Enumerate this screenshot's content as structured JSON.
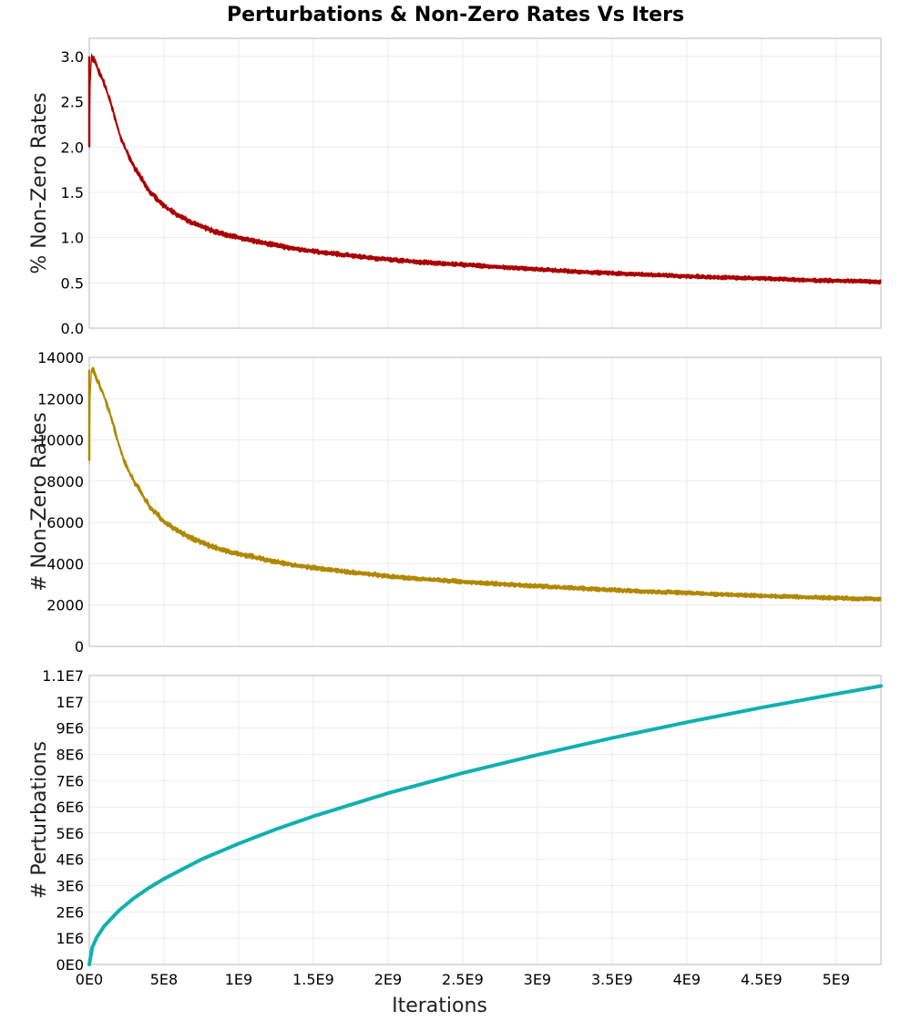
{
  "title": "Perturbations & Non-Zero Rates Vs Iters",
  "colors": {
    "pct_series": "#aa0000",
    "count_series": "#b08800",
    "perturb_series": "#10b0b0"
  },
  "chart_data": [
    {
      "type": "line",
      "ylabel": "% Non-Zero Rates",
      "xlim": [
        0,
        5300000000
      ],
      "ylim": [
        0,
        3.2
      ],
      "yticks": [
        0.0,
        0.5,
        1.0,
        1.5,
        2.0,
        2.5,
        3.0
      ],
      "ytick_labels": [
        "0.0",
        "0.5",
        "1.0",
        "1.5",
        "2.0",
        "2.5",
        "3.0"
      ],
      "band": true,
      "x": [
        0,
        10000000,
        30000000,
        60000000,
        100000000,
        150000000,
        200000000,
        250000000,
        300000000,
        350000000,
        400000000,
        500000000,
        600000000,
        700000000,
        800000000,
        900000000,
        1000000000,
        1200000000,
        1400000000,
        1600000000,
        1800000000,
        2000000000,
        2200000000,
        2400000000,
        2600000000,
        2800000000,
        3000000000,
        3300000000,
        3600000000,
        3900000000,
        4200000000,
        4500000000,
        4800000000,
        5100000000,
        5300000000
      ],
      "y": [
        2.0,
        3.0,
        2.97,
        2.85,
        2.7,
        2.45,
        2.15,
        1.95,
        1.78,
        1.65,
        1.52,
        1.35,
        1.24,
        1.16,
        1.09,
        1.04,
        1.0,
        0.93,
        0.87,
        0.83,
        0.79,
        0.76,
        0.73,
        0.71,
        0.69,
        0.67,
        0.65,
        0.62,
        0.6,
        0.58,
        0.56,
        0.55,
        0.53,
        0.52,
        0.51
      ]
    },
    {
      "type": "line",
      "ylabel": "# Non-Zero Rates",
      "xlim": [
        0,
        5300000000
      ],
      "ylim": [
        0,
        14000
      ],
      "yticks": [
        0,
        2000,
        4000,
        6000,
        8000,
        10000,
        12000,
        14000
      ],
      "ytick_labels": [
        "0",
        "2000",
        "4000",
        "6000",
        "8000",
        "10000",
        "12000",
        "14000"
      ],
      "band": true,
      "x": [
        0,
        10000000,
        30000000,
        60000000,
        100000000,
        150000000,
        200000000,
        250000000,
        300000000,
        350000000,
        400000000,
        500000000,
        600000000,
        700000000,
        800000000,
        900000000,
        1000000000,
        1200000000,
        1400000000,
        1600000000,
        1800000000,
        2000000000,
        2200000000,
        2400000000,
        2600000000,
        2800000000,
        3000000000,
        3300000000,
        3600000000,
        3900000000,
        4200000000,
        4500000000,
        4800000000,
        5100000000,
        5300000000
      ],
      "y": [
        9000,
        13400,
        13300,
        12800,
        12100,
        11000,
        9700,
        8700,
        8000,
        7400,
        6800,
        6050,
        5550,
        5200,
        4900,
        4650,
        4480,
        4170,
        3900,
        3720,
        3550,
        3400,
        3270,
        3180,
        3090,
        3000,
        2920,
        2800,
        2700,
        2610,
        2520,
        2450,
        2380,
        2320,
        2290
      ]
    },
    {
      "type": "line",
      "ylabel": "# Perturbations",
      "xlabel": "Iterations",
      "xlim": [
        0,
        5300000000
      ],
      "ylim": [
        0,
        11000000
      ],
      "yticks": [
        0,
        1000000,
        2000000,
        3000000,
        4000000,
        5000000,
        6000000,
        7000000,
        8000000,
        9000000,
        10000000,
        11000000
      ],
      "ytick_labels": [
        "0E0",
        "1E6",
        "2E6",
        "3E6",
        "4E6",
        "5E6",
        "6E6",
        "7E6",
        "8E6",
        "9E6",
        "1E7",
        "1.1E7"
      ],
      "xticks": [
        0,
        500000000,
        1000000000,
        1500000000,
        2000000000,
        2500000000,
        3000000000,
        3500000000,
        4000000000,
        4500000000,
        5000000000
      ],
      "xtick_labels": [
        "0E0",
        "5E8",
        "1E9",
        "1.5E9",
        "2E9",
        "2.5E9",
        "3E9",
        "3.5E9",
        "4E9",
        "4.5E9",
        "5E9"
      ],
      "band": false,
      "x": [
        0,
        20000000,
        50000000,
        100000000,
        200000000,
        300000000,
        400000000,
        500000000,
        750000000,
        1000000000,
        1250000000,
        1500000000,
        2000000000,
        2500000000,
        3000000000,
        3500000000,
        4000000000,
        4500000000,
        5000000000,
        5300000000
      ],
      "y": [
        0,
        650000,
        1030000,
        1460000,
        2060000,
        2530000,
        2920000,
        3260000,
        4000000,
        4600000,
        5150000,
        5640000,
        6520000,
        7290000,
        7980000,
        8620000,
        9220000,
        9780000,
        10300000,
        10600000
      ]
    }
  ]
}
